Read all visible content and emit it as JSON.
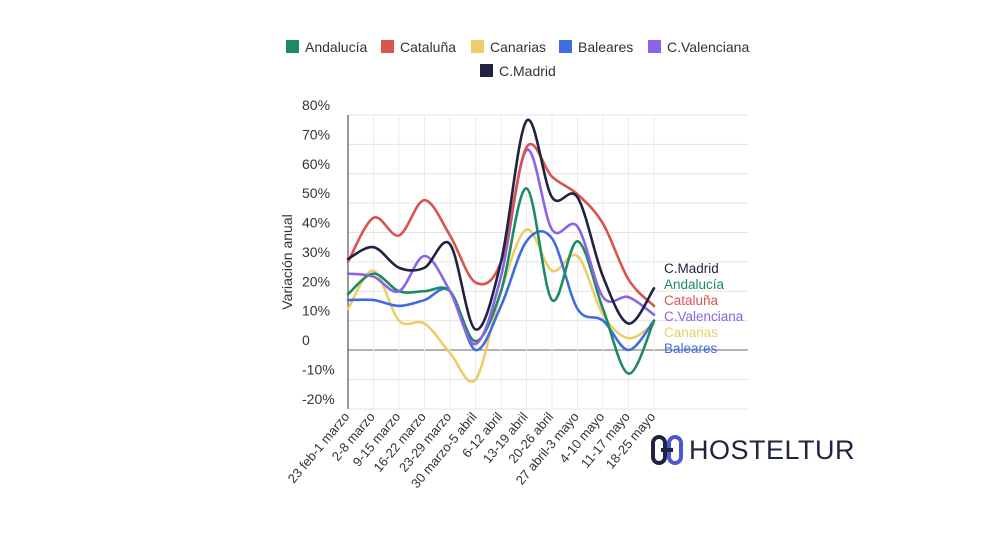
{
  "chart_data": {
    "type": "line",
    "title": "",
    "xlabel": "",
    "ylabel": "Variación anual",
    "ylim": [
      -20,
      80
    ],
    "yticks": [
      -20,
      -10,
      0,
      10,
      20,
      30,
      40,
      50,
      60,
      70,
      80
    ],
    "ytick_labels": [
      "-20%",
      "-10%",
      "0",
      "10%",
      "20%",
      "30%",
      "40%",
      "50%",
      "60%",
      "70%",
      "80%"
    ],
    "grid": true,
    "legend_position": "top",
    "categories": [
      "23 feb-1 marzo",
      "2-8 marzo",
      "9-15 marzo",
      "16-22 marzo",
      "23-29 marzo",
      "30 marzo-5 abril",
      "6-12 abril",
      "13-19 abril",
      "20-26 abril",
      "27 abril-3 mayo",
      "4-10 mayo",
      "11-17 mayo",
      "18-25 mayo"
    ],
    "series": [
      {
        "name": "Andalucía",
        "color": "#1e8a63",
        "values": [
          19,
          26,
          20,
          20,
          20,
          3,
          20,
          55,
          17,
          37,
          14,
          -8,
          10
        ]
      },
      {
        "name": "Cataluña",
        "color": "#d9534f",
        "values": [
          30,
          45,
          39,
          51,
          39,
          23,
          30,
          69,
          59,
          53,
          43,
          24,
          15
        ]
      },
      {
        "name": "Canarias",
        "color": "#eccd6a",
        "values": [
          14,
          27,
          10,
          9,
          -1,
          -10,
          20,
          41,
          27,
          32,
          12,
          4,
          9
        ]
      },
      {
        "name": "Baleares",
        "color": "#3f6ce0",
        "values": [
          17,
          17,
          15,
          17,
          20,
          0,
          15,
          37,
          38,
          14,
          10,
          0,
          10
        ]
      },
      {
        "name": "C.Valenciana",
        "color": "#8a63e8",
        "values": [
          26,
          25,
          20,
          32,
          20,
          2,
          25,
          68,
          41,
          42,
          18,
          18,
          12
        ]
      },
      {
        "name": "C.Madrid",
        "color": "#1d2340",
        "values": [
          31,
          35,
          28,
          28,
          36,
          7,
          30,
          78,
          52,
          52,
          25,
          9,
          21
        ]
      }
    ],
    "end_labels": [
      "C.Madrid",
      "Andalucía",
      "Cataluña",
      "C.Valenciana",
      "Canarias",
      "Baleares"
    ]
  },
  "logo": {
    "text": "HOSTELTUR"
  }
}
